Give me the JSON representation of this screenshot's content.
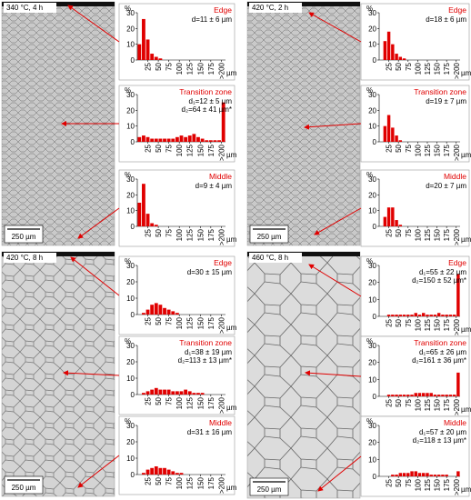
{
  "panels": [
    {
      "label": "340 °C, 4 h",
      "scale_bar": "250 µm"
    },
    {
      "label": "420 °C, 2 h",
      "scale_bar": "250 µm"
    },
    {
      "label": "420 °C, 8 h",
      "scale_bar": "250 µm"
    },
    {
      "label": "460 °C, 8 h",
      "scale_bar": "250 µm"
    }
  ],
  "chart_data": [
    {
      "type": "histogram",
      "title": "Edge",
      "annotations": [
        "d=11 ± 6 µm"
      ],
      "y_label": "%",
      "x_label": "µm",
      "color": "#e00000",
      "bins": [
        0,
        10,
        20,
        30,
        40,
        50,
        60,
        70,
        80,
        90,
        100,
        110,
        120,
        130,
        140,
        150,
        160,
        170,
        180,
        190,
        200,
        210
      ],
      "values": [
        10,
        26,
        13,
        4,
        2,
        1,
        0,
        0,
        0,
        0,
        0,
        0,
        0,
        0,
        0,
        0,
        0,
        0,
        0,
        0,
        0
      ],
      "xlim": [
        0,
        210
      ],
      "xticks": [
        25,
        50,
        75,
        100,
        125,
        150,
        175,
        {
          "value": 200,
          "label": ">200"
        }
      ],
      "ylim": [
        0,
        30
      ],
      "yticks": [
        0,
        10,
        20,
        30
      ]
    },
    {
      "type": "histogram",
      "title": "Transition zone",
      "annotations": [
        "d₁=12 ± 5 µm",
        "d₂=64 ± 41 µm*"
      ],
      "y_label": "%",
      "x_label": "µm",
      "color": "#e00000",
      "bins": [
        0,
        10,
        20,
        30,
        40,
        50,
        60,
        70,
        80,
        90,
        100,
        110,
        120,
        130,
        140,
        150,
        160,
        170,
        180,
        190,
        200,
        210
      ],
      "values": [
        3,
        4,
        3,
        2,
        2,
        2,
        2,
        2,
        2,
        3,
        4,
        3,
        4,
        5,
        3,
        2,
        1,
        1,
        1,
        1,
        25
      ],
      "xlim": [
        0,
        210
      ],
      "xticks": [
        25,
        50,
        75,
        100,
        125,
        150,
        175,
        {
          "value": 200,
          "label": ">200"
        }
      ],
      "ylim": [
        0,
        30
      ],
      "yticks": [
        0,
        10,
        20,
        30
      ]
    },
    {
      "type": "histogram",
      "title": "Middle",
      "annotations": [
        "d=9 ± 4 µm"
      ],
      "y_label": "%",
      "x_label": "µm",
      "color": "#e00000",
      "bins": [
        0,
        10,
        20,
        30,
        40,
        50,
        60,
        70,
        80,
        90,
        100,
        110,
        120,
        130,
        140,
        150,
        160,
        170,
        180,
        190,
        200,
        210
      ],
      "values": [
        15,
        27,
        8,
        2,
        1,
        0,
        0,
        0,
        0,
        0,
        0,
        0,
        0,
        0,
        0,
        0,
        0,
        0,
        0,
        0,
        0
      ],
      "xlim": [
        0,
        210
      ],
      "xticks": [
        25,
        50,
        75,
        100,
        125,
        150,
        175,
        {
          "value": 200,
          "label": ">200"
        }
      ],
      "ylim": [
        0,
        30
      ],
      "yticks": [
        0,
        10,
        20,
        30
      ]
    },
    {
      "type": "histogram",
      "title": "Edge",
      "annotations": [
        "d=18 ± 6 µm"
      ],
      "y_label": "%",
      "x_label": "µm",
      "color": "#e00000",
      "bins": [
        0,
        10,
        20,
        30,
        40,
        50,
        60,
        70,
        80,
        90,
        100,
        110,
        120,
        130,
        140,
        150,
        160,
        170,
        180,
        190,
        200,
        210
      ],
      "values": [
        0,
        12,
        18,
        10,
        4,
        2,
        1,
        0,
        0,
        0,
        0,
        0,
        0,
        0,
        0,
        0,
        0,
        0,
        0,
        0,
        0
      ],
      "xlim": [
        0,
        210
      ],
      "xticks": [
        25,
        50,
        75,
        100,
        125,
        150,
        175,
        {
          "value": 200,
          "label": ">200"
        }
      ],
      "ylim": [
        0,
        30
      ],
      "yticks": [
        0,
        10,
        20,
        30
      ]
    },
    {
      "type": "histogram",
      "title": "Transition zone",
      "annotations": [
        "d=19 ± 7 µm"
      ],
      "y_label": "%",
      "x_label": "µm",
      "color": "#e00000",
      "bins": [
        0,
        10,
        20,
        30,
        40,
        50,
        60,
        70,
        80,
        90,
        100,
        110,
        120,
        130,
        140,
        150,
        160,
        170,
        180,
        190,
        200,
        210
      ],
      "values": [
        0,
        10,
        17,
        9,
        4,
        1,
        0,
        0,
        0,
        0,
        0,
        0,
        0,
        0,
        0,
        0,
        0,
        0,
        0,
        0,
        0
      ],
      "xlim": [
        0,
        210
      ],
      "xticks": [
        25,
        50,
        75,
        100,
        125,
        150,
        175,
        {
          "value": 200,
          "label": ">200"
        }
      ],
      "ylim": [
        0,
        30
      ],
      "yticks": [
        0,
        10,
        20,
        30
      ]
    },
    {
      "type": "histogram",
      "title": "Middle",
      "annotations": [
        "d=20 ± 7 µm"
      ],
      "y_label": "%",
      "x_label": "µm",
      "color": "#e00000",
      "bins": [
        0,
        10,
        20,
        30,
        40,
        50,
        60,
        70,
        80,
        90,
        100,
        110,
        120,
        130,
        140,
        150,
        160,
        170,
        180,
        190,
        200,
        210
      ],
      "values": [
        0,
        6,
        12,
        12,
        4,
        1,
        0,
        0,
        0,
        0,
        0,
        0,
        0,
        0,
        0,
        0,
        0,
        0,
        0,
        0,
        0
      ],
      "xlim": [
        0,
        210
      ],
      "xticks": [
        25,
        50,
        75,
        100,
        125,
        150,
        175,
        {
          "value": 200,
          "label": ">200"
        }
      ],
      "ylim": [
        0,
        30
      ],
      "yticks": [
        0,
        10,
        20,
        30
      ]
    },
    {
      "type": "histogram",
      "title": "Edge",
      "annotations": [
        "d=30 ± 15 µm"
      ],
      "y_label": "%",
      "x_label": "µm",
      "color": "#e00000",
      "bins": [
        0,
        10,
        20,
        30,
        40,
        50,
        60,
        70,
        80,
        90,
        100,
        110,
        120,
        130,
        140,
        150,
        160,
        170,
        180,
        190,
        200,
        210
      ],
      "values": [
        0,
        1,
        3,
        6,
        7,
        6,
        4,
        3,
        2,
        1,
        0,
        0,
        0,
        0,
        0,
        0,
        0,
        0,
        0,
        0,
        0
      ],
      "xlim": [
        0,
        210
      ],
      "xticks": [
        25,
        50,
        75,
        100,
        125,
        150,
        175,
        {
          "value": 200,
          "label": ">200"
        }
      ],
      "ylim": [
        0,
        30
      ],
      "yticks": [
        0,
        10,
        20,
        30
      ]
    },
    {
      "type": "histogram",
      "title": "Transition zone",
      "annotations": [
        "d₁=38 ± 19 µm",
        "d₂=113 ± 13 µm*"
      ],
      "y_label": "%",
      "x_label": "µm",
      "color": "#e00000",
      "bins": [
        0,
        10,
        20,
        30,
        40,
        50,
        60,
        70,
        80,
        90,
        100,
        110,
        120,
        130,
        140,
        150,
        160,
        170,
        180,
        190,
        200,
        210
      ],
      "values": [
        0,
        1,
        2,
        3,
        4,
        3,
        3,
        3,
        2,
        2,
        2,
        3,
        2,
        1,
        1,
        1,
        0,
        0,
        0,
        0,
        0
      ],
      "xlim": [
        0,
        210
      ],
      "xticks": [
        25,
        50,
        75,
        100,
        125,
        150,
        175,
        {
          "value": 200,
          "label": ">200"
        }
      ],
      "ylim": [
        0,
        30
      ],
      "yticks": [
        0,
        10,
        20,
        30
      ]
    },
    {
      "type": "histogram",
      "title": "Middle",
      "annotations": [
        "d=31 ± 16 µm"
      ],
      "y_label": "%",
      "x_label": "µm",
      "color": "#e00000",
      "bins": [
        0,
        10,
        20,
        30,
        40,
        50,
        60,
        70,
        80,
        90,
        100,
        110,
        120,
        130,
        140,
        150,
        160,
        170,
        180,
        190,
        200,
        210
      ],
      "values": [
        0,
        1,
        3,
        4,
        5,
        4,
        4,
        3,
        2,
        1,
        1,
        0,
        0,
        0,
        0,
        0,
        0,
        0,
        0,
        0,
        0
      ],
      "xlim": [
        0,
        210
      ],
      "xticks": [
        25,
        50,
        75,
        100,
        125,
        150,
        175,
        {
          "value": 200,
          "label": ">200"
        }
      ],
      "ylim": [
        0,
        30
      ],
      "yticks": [
        0,
        10,
        20,
        30
      ]
    },
    {
      "type": "histogram",
      "title": "Edge",
      "annotations": [
        "d₁=55 ± 22 µm",
        "d₂=150 ± 52 µm*"
      ],
      "y_label": "%",
      "x_label": "µm",
      "color": "#e00000",
      "bins": [
        0,
        10,
        20,
        30,
        40,
        50,
        60,
        70,
        80,
        90,
        100,
        110,
        120,
        130,
        140,
        150,
        160,
        170,
        180,
        190,
        200,
        210
      ],
      "values": [
        0,
        0,
        1,
        1,
        1,
        1,
        1,
        1,
        1,
        2,
        1,
        2,
        1,
        1,
        1,
        2,
        1,
        1,
        1,
        1,
        25
      ],
      "xlim": [
        0,
        210
      ],
      "xticks": [
        25,
        50,
        75,
        100,
        125,
        150,
        175,
        {
          "value": 200,
          "label": ">200"
        }
      ],
      "ylim": [
        0,
        30
      ],
      "yticks": [
        0,
        10,
        20,
        30
      ]
    },
    {
      "type": "histogram",
      "title": "Transition zone",
      "annotations": [
        "d₁=65 ± 26 µm",
        "d₂=161 ± 36 µm*"
      ],
      "y_label": "%",
      "x_label": "µm",
      "color": "#e00000",
      "bins": [
        0,
        10,
        20,
        30,
        40,
        50,
        60,
        70,
        80,
        90,
        100,
        110,
        120,
        130,
        140,
        150,
        160,
        170,
        180,
        190,
        200,
        210
      ],
      "values": [
        0,
        0,
        1,
        1,
        1,
        1,
        1,
        1,
        1,
        2,
        2,
        2,
        2,
        2,
        1,
        1,
        1,
        1,
        1,
        1,
        14
      ],
      "xlim": [
        0,
        210
      ],
      "xticks": [
        25,
        50,
        75,
        100,
        125,
        150,
        175,
        {
          "value": 200,
          "label": ">200"
        }
      ],
      "ylim": [
        0,
        30
      ],
      "yticks": [
        0,
        10,
        20,
        30
      ]
    },
    {
      "type": "histogram",
      "title": "Middle",
      "annotations": [
        "d₁=57 ± 20 µm",
        "d₂=118 ± 13 µm*"
      ],
      "y_label": "%",
      "x_label": "µm",
      "color": "#e00000",
      "bins": [
        0,
        10,
        20,
        30,
        40,
        50,
        60,
        70,
        80,
        90,
        100,
        110,
        120,
        130,
        140,
        150,
        160,
        170,
        180,
        190,
        200,
        210
      ],
      "values": [
        0,
        0,
        0,
        1,
        1,
        2,
        2,
        2,
        3,
        3,
        2,
        2,
        2,
        1,
        1,
        1,
        1,
        1,
        0,
        0,
        3
      ],
      "xlim": [
        0,
        210
      ],
      "xticks": [
        25,
        50,
        75,
        100,
        125,
        150,
        175,
        {
          "value": 200,
          "label": ">200"
        }
      ],
      "ylim": [
        0,
        30
      ],
      "yticks": [
        0,
        10,
        20,
        30
      ]
    }
  ]
}
